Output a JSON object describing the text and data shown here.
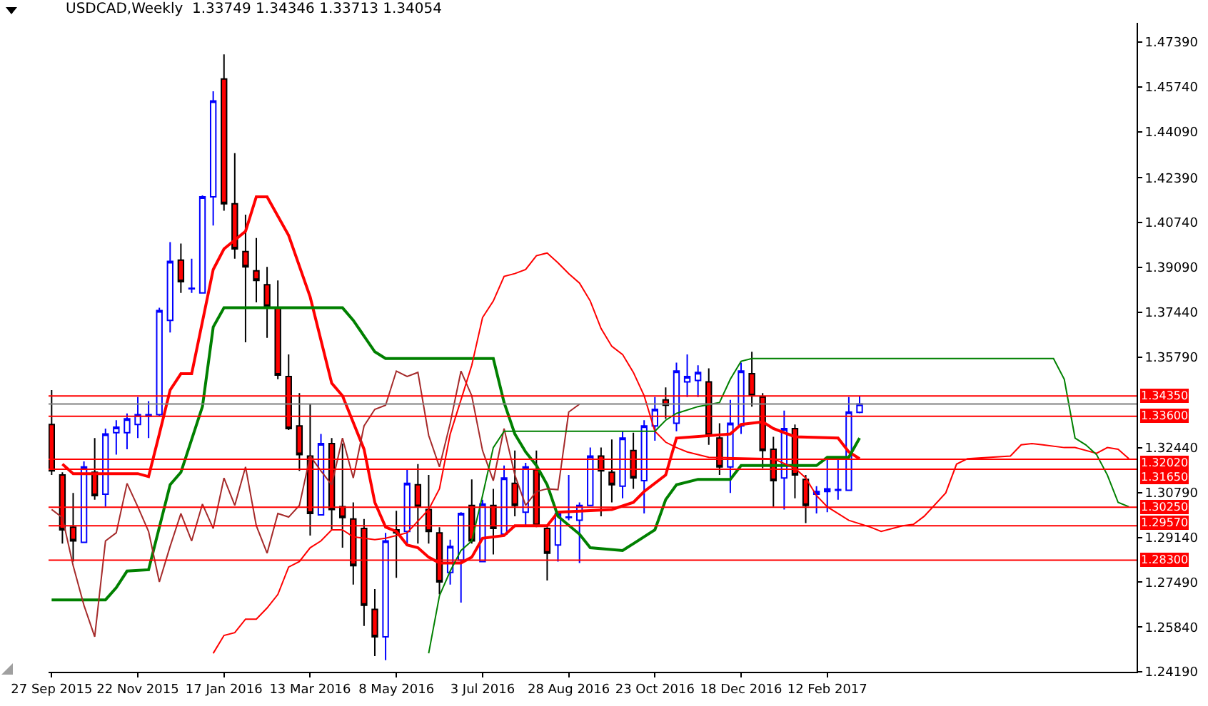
{
  "chart_data": {
    "type": "candlestick",
    "title": "USDCAD,Weekly  1.33749 1.34346 1.33713 1.34054",
    "x": [
      "2015-09-27",
      "2015-10-04",
      "2015-10-11",
      "2015-10-18",
      "2015-10-25",
      "2015-11-01",
      "2015-11-08",
      "2015-11-15",
      "2015-11-22",
      "2015-11-29",
      "2015-12-06",
      "2015-12-13",
      "2015-12-20",
      "2015-12-27",
      "2016-01-03",
      "2016-01-10",
      "2016-01-17",
      "2016-01-24",
      "2016-01-31",
      "2016-02-07",
      "2016-02-14",
      "2016-02-21",
      "2016-02-28",
      "2016-03-06",
      "2016-03-13",
      "2016-03-20",
      "2016-03-27",
      "2016-04-03",
      "2016-04-10",
      "2016-04-17",
      "2016-04-24",
      "2016-05-01",
      "2016-05-08",
      "2016-05-15",
      "2016-05-22",
      "2016-05-29",
      "2016-06-05",
      "2016-06-12",
      "2016-06-19",
      "2016-06-26",
      "2016-07-03",
      "2016-07-10",
      "2016-07-17",
      "2016-07-24",
      "2016-07-31",
      "2016-08-07",
      "2016-08-14",
      "2016-08-21",
      "2016-08-28",
      "2016-09-04",
      "2016-09-11",
      "2016-09-18",
      "2016-09-25",
      "2016-10-02",
      "2016-10-09",
      "2016-10-16",
      "2016-10-23",
      "2016-10-30",
      "2016-11-06",
      "2016-11-13",
      "2016-11-20",
      "2016-11-27",
      "2016-12-04",
      "2016-12-11",
      "2016-12-18",
      "2016-12-25",
      "2017-01-01",
      "2017-01-08",
      "2017-01-15",
      "2017-01-22",
      "2017-01-29",
      "2017-02-05",
      "2017-02-12",
      "2017-02-19",
      "2017-02-26",
      "2017-03-05"
    ],
    "ohlc": [
      [
        1.333,
        1.3457,
        1.3144,
        1.3159
      ],
      [
        1.3144,
        1.3154,
        1.2891,
        1.2942
      ],
      [
        1.2952,
        1.3078,
        1.2825,
        1.2901
      ],
      [
        1.2896,
        1.3194,
        1.2896,
        1.3174
      ],
      [
        1.3154,
        1.328,
        1.3053,
        1.3068
      ],
      [
        1.3073,
        1.3315,
        1.3027,
        1.3295
      ],
      [
        1.33,
        1.3346,
        1.3219,
        1.332
      ],
      [
        1.33,
        1.3371,
        1.3239,
        1.3351
      ],
      [
        1.333,
        1.3431,
        1.328,
        1.3366
      ],
      [
        1.3361,
        1.3416,
        1.328,
        1.3366
      ],
      [
        1.3366,
        1.376,
        1.3361,
        1.375
      ],
      [
        1.3714,
        1.4002,
        1.3669,
        1.3931
      ],
      [
        1.3936,
        1.3997,
        1.3815,
        1.3856
      ],
      [
        1.383,
        1.3941,
        1.3815,
        1.3832
      ],
      [
        1.3815,
        1.4174,
        1.3815,
        1.4169
      ],
      [
        1.4169,
        1.4558,
        1.4063,
        1.4522
      ],
      [
        1.4603,
        1.4694,
        1.4118,
        1.4143
      ],
      [
        1.4143,
        1.433,
        1.3941,
        1.3977
      ],
      [
        1.3967,
        1.4103,
        1.3633,
        1.3911
      ],
      [
        1.3896,
        1.4017,
        1.378,
        1.3861
      ],
      [
        1.3845,
        1.3911,
        1.3649,
        1.3765
      ],
      [
        1.376,
        1.3861,
        1.3497,
        1.3512
      ],
      [
        1.3507,
        1.3588,
        1.331,
        1.3315
      ],
      [
        1.3325,
        1.3446,
        1.3159,
        1.3219
      ],
      [
        1.3214,
        1.3406,
        1.2921,
        1.3002
      ],
      [
        1.2997,
        1.3295,
        1.2997,
        1.326
      ],
      [
        1.326,
        1.328,
        1.2942,
        1.3017
      ],
      [
        1.3027,
        1.326,
        1.2876,
        1.2987
      ],
      [
        1.2982,
        1.3043,
        1.274,
        1.281
      ],
      [
        1.2947,
        1.2982,
        1.2588,
        1.2664
      ],
      [
        1.2649,
        1.2724,
        1.2477,
        1.2548
      ],
      [
        1.2548,
        1.2931,
        1.2462,
        1.2901
      ],
      [
        1.2942,
        1.3012,
        1.2765,
        1.2931
      ],
      [
        1.2936,
        1.3164,
        1.2891,
        1.3113
      ],
      [
        1.3108,
        1.3184,
        1.2891,
        1.3027
      ],
      [
        1.3017,
        1.3144,
        1.2891,
        1.2936
      ],
      [
        1.2931,
        1.2952,
        1.2704,
        1.275
      ],
      [
        1.2785,
        1.2906,
        1.274,
        1.2881
      ],
      [
        1.283,
        1.3007,
        1.2674,
        1.3002
      ],
      [
        1.3032,
        1.3128,
        1.2891,
        1.2901
      ],
      [
        1.2825,
        1.3053,
        1.2825,
        1.3037
      ],
      [
        1.3032,
        1.3093,
        1.2851,
        1.2947
      ],
      [
        1.2926,
        1.3179,
        1.2926,
        1.3133
      ],
      [
        1.3113,
        1.3234,
        1.2992,
        1.3032
      ],
      [
        1.3007,
        1.3189,
        1.2957,
        1.3174
      ],
      [
        1.3164,
        1.3234,
        1.2952,
        1.2957
      ],
      [
        1.2947,
        1.2952,
        1.2755,
        1.2856
      ],
      [
        1.2886,
        1.3007,
        1.2825,
        1.3002
      ],
      [
        1.2987,
        1.3144,
        1.2977,
        1.2989
      ],
      [
        1.2977,
        1.3043,
        1.282,
        1.3032
      ],
      [
        1.3032,
        1.3245,
        1.3032,
        1.3214
      ],
      [
        1.3214,
        1.3245,
        1.2992,
        1.3159
      ],
      [
        1.3154,
        1.3275,
        1.3043,
        1.3108
      ],
      [
        1.3103,
        1.3305,
        1.3058,
        1.328
      ],
      [
        1.3234,
        1.33,
        1.3093,
        1.3133
      ],
      [
        1.3123,
        1.3346,
        1.3002,
        1.3325
      ],
      [
        1.3325,
        1.3431,
        1.327,
        1.3386
      ],
      [
        1.3421,
        1.3467,
        1.3351,
        1.3401
      ],
      [
        1.3335,
        1.3558,
        1.3305,
        1.3527
      ],
      [
        1.3487,
        1.3588,
        1.3431,
        1.3507
      ],
      [
        1.3492,
        1.3548,
        1.3431,
        1.3522
      ],
      [
        1.3487,
        1.3537,
        1.3255,
        1.329
      ],
      [
        1.328,
        1.3335,
        1.3144,
        1.3174
      ],
      [
        1.3174,
        1.3421,
        1.3078,
        1.3335
      ],
      [
        1.3325,
        1.3558,
        1.3295,
        1.3527
      ],
      [
        1.3517,
        1.3598,
        1.3396,
        1.3436
      ],
      [
        1.3431,
        1.3446,
        1.3169,
        1.3234
      ],
      [
        1.3239,
        1.3285,
        1.3027,
        1.3123
      ],
      [
        1.3133,
        1.3381,
        1.3017,
        1.3315
      ],
      [
        1.3315,
        1.333,
        1.3058,
        1.3144
      ],
      [
        1.3128,
        1.3144,
        1.2967,
        1.3032
      ],
      [
        1.3073,
        1.3103,
        1.3002,
        1.3083
      ],
      [
        1.3083,
        1.3204,
        1.3007,
        1.3093
      ],
      [
        1.3088,
        1.3204,
        1.3053,
        1.309
      ],
      [
        1.3088,
        1.3431,
        1.3088,
        1.3376
      ],
      [
        1.33749,
        1.34346,
        1.33713,
        1.34054
      ]
    ],
    "series": [
      {
        "type": "line",
        "color": "#ff0000",
        "x": [
          "2015-10-04",
          "2015-10-11",
          "2015-11-22",
          "2015-11-29",
          "2015-12-06",
          "2015-12-13",
          "2015-12-20",
          "2015-12-27",
          "2016-01-10",
          "2016-01-17",
          "2016-01-31",
          "2016-02-07",
          "2016-02-14",
          "2016-02-28",
          "2016-03-13",
          "2016-03-27",
          "2016-04-03",
          "2016-04-17",
          "2016-04-24",
          "2016-05-01",
          "2016-05-08",
          "2016-05-15",
          "2016-05-22",
          "2016-05-29",
          "2016-06-05",
          "2016-06-19",
          "2016-06-26",
          "2016-07-03",
          "2016-07-17",
          "2016-07-24",
          "2016-08-14",
          "2016-08-21",
          "2016-09-25",
          "2016-10-09",
          "2016-10-16",
          "2016-10-30",
          "2016-11-06",
          "2016-12-11",
          "2016-12-18",
          "2017-01-01",
          "2017-01-08",
          "2017-01-22",
          "2017-02-19",
          "2017-02-26",
          "2017-03-05"
        ],
        "values": [
          1.3184,
          1.3149,
          1.3149,
          1.3138,
          1.3295,
          1.3457,
          1.3517,
          1.3517,
          1.3901,
          1.3977,
          1.4042,
          1.4169,
          1.4169,
          1.4027,
          1.38,
          1.3482,
          1.3436,
          1.3239,
          1.3043,
          1.2952,
          1.2936,
          1.2886,
          1.2876,
          1.2841,
          1.282,
          1.282,
          1.2841,
          1.2911,
          1.2921,
          1.2957,
          1.2957,
          1.3007,
          1.3017,
          1.3043,
          1.3083,
          1.3144,
          1.328,
          1.3295,
          1.333,
          1.334,
          1.3315,
          1.3285,
          1.328,
          1.3229,
          1.3204
        ]
      },
      {
        "type": "line",
        "color": "#008000",
        "x": [
          "2015-09-27",
          "2015-11-01",
          "2015-11-08",
          "2015-11-15",
          "2015-11-29",
          "2015-12-13",
          "2015-12-20",
          "2016-01-03",
          "2016-01-10",
          "2016-01-17",
          "2016-04-03",
          "2016-04-10",
          "2016-04-24",
          "2016-05-01",
          "2016-07-10",
          "2016-07-17",
          "2016-07-24",
          "2016-07-31",
          "2016-08-07",
          "2016-08-14",
          "2016-08-21",
          "2016-09-04",
          "2016-09-11",
          "2016-10-02",
          "2016-10-09",
          "2016-10-23",
          "2016-10-30",
          "2016-11-06",
          "2016-11-20",
          "2016-12-11",
          "2016-12-18",
          "2017-02-05",
          "2017-02-12",
          "2017-02-26",
          "2017-03-05"
        ],
        "values": [
          1.2684,
          1.2684,
          1.2729,
          1.279,
          1.2795,
          1.3108,
          1.3154,
          1.3396,
          1.3689,
          1.376,
          1.376,
          1.3714,
          1.3598,
          1.3573,
          1.3573,
          1.3411,
          1.3295,
          1.3229,
          1.3179,
          1.3108,
          1.2992,
          1.2926,
          1.2876,
          1.2866,
          1.2891,
          1.2942,
          1.3053,
          1.3108,
          1.3128,
          1.3128,
          1.3179,
          1.3179,
          1.3209,
          1.3209,
          1.328
        ]
      },
      {
        "type": "line",
        "color": "#a52a2a",
        "x": [
          "2015-09-27",
          "2015-10-04",
          "2015-10-11",
          "2015-10-18",
          "2015-10-25",
          "2015-11-01",
          "2015-11-08",
          "2015-11-15",
          "2015-11-22",
          "2015-11-29",
          "2015-12-06",
          "2015-12-13",
          "2015-12-20",
          "2015-12-27",
          "2016-01-03",
          "2016-01-10",
          "2016-01-17",
          "2016-01-24",
          "2016-01-31",
          "2016-02-07",
          "2016-02-14",
          "2016-02-21",
          "2016-02-28",
          "2016-03-06",
          "2016-03-13",
          "2016-03-20",
          "2016-03-27",
          "2016-04-03",
          "2016-04-10",
          "2016-04-17",
          "2016-04-24",
          "2016-05-01",
          "2016-05-08",
          "2016-05-15",
          "2016-05-22",
          "2016-05-29",
          "2016-06-05",
          "2016-06-12",
          "2016-06-19",
          "2016-06-26",
          "2016-07-03",
          "2016-07-10",
          "2016-07-17",
          "2016-07-24",
          "2016-07-31",
          "2016-08-07",
          "2016-08-14",
          "2016-08-21",
          "2016-08-28",
          "2016-09-04"
        ],
        "values": [
          1.3017,
          1.2987,
          1.281,
          1.2664,
          1.2548,
          1.2901,
          1.2931,
          1.3113,
          1.3027,
          1.2936,
          1.275,
          1.2881,
          1.3002,
          1.2901,
          1.3037,
          1.2947,
          1.3133,
          1.3032,
          1.3174,
          1.2957,
          1.2856,
          1.3002,
          1.2989,
          1.3032,
          1.3214,
          1.3159,
          1.3108,
          1.328,
          1.3133,
          1.3325,
          1.3386,
          1.3401,
          1.3527,
          1.3507,
          1.3522,
          1.329,
          1.3174,
          1.3335,
          1.3527,
          1.3436,
          1.3234,
          1.3123,
          1.3315,
          1.3144,
          1.3032,
          1.3083,
          1.3093,
          1.309,
          1.3376,
          1.3405
        ]
      },
      {
        "type": "line",
        "color": "#ff0000",
        "x": [
          "2016-01-10",
          "2016-01-17",
          "2016-01-24",
          "2016-01-31",
          "2016-02-07",
          "2016-02-14",
          "2016-02-21",
          "2016-02-28",
          "2016-03-06",
          "2016-03-13",
          "2016-03-20",
          "2016-03-27",
          "2016-04-03",
          "2016-04-10",
          "2016-04-24",
          "2016-05-01",
          "2016-05-15",
          "2016-05-29",
          "2016-06-05",
          "2016-06-12",
          "2016-06-19",
          "2016-06-26",
          "2016-07-03",
          "2016-07-10",
          "2016-07-17",
          "2016-07-24",
          "2016-07-31",
          "2016-08-07",
          "2016-08-14",
          "2016-08-21",
          "2016-08-28",
          "2016-09-04",
          "2016-09-11",
          "2016-09-18",
          "2016-09-25",
          "2016-10-02",
          "2016-10-09",
          "2016-10-16",
          "2016-10-23",
          "2016-10-30",
          "2016-11-06",
          "2016-11-13",
          "2016-11-27",
          "2017-01-08",
          "2017-01-22",
          "2017-01-29",
          "2017-02-05",
          "2017-02-12",
          "2017-02-26",
          "2017-03-12",
          "2017-03-19",
          "2017-04-02",
          "2017-04-09",
          "2017-04-16",
          "2017-04-30",
          "2017-05-07",
          "2017-05-14",
          "2017-06-11",
          "2017-06-18",
          "2017-06-25",
          "2017-07-02",
          "2017-07-16",
          "2017-07-23",
          "2017-08-06",
          "2017-08-13",
          "2017-08-20",
          "2017-08-27"
        ],
        "values": [
          1.2487,
          1.2553,
          1.2563,
          1.2613,
          1.2613,
          1.2654,
          1.2704,
          1.2805,
          1.2825,
          1.2876,
          1.2901,
          1.2942,
          1.2942,
          1.2916,
          1.2906,
          1.2911,
          1.2931,
          1.3017,
          1.3093,
          1.3295,
          1.3421,
          1.3548,
          1.3724,
          1.3785,
          1.3876,
          1.3886,
          1.3901,
          1.3952,
          1.3962,
          1.3926,
          1.3886,
          1.3851,
          1.3785,
          1.3684,
          1.3618,
          1.3588,
          1.3522,
          1.3436,
          1.3305,
          1.3265,
          1.3245,
          1.3229,
          1.3209,
          1.3204,
          1.3169,
          1.3133,
          1.3068,
          1.3027,
          1.2977,
          1.2952,
          1.2936,
          1.2957,
          1.2962,
          1.2992,
          1.3078,
          1.3184,
          1.3204,
          1.3214,
          1.3255,
          1.326,
          1.3255,
          1.3245,
          1.3245,
          1.3224,
          1.3245,
          1.3239,
          1.3204
        ]
      },
      {
        "type": "line",
        "color": "#008000",
        "x": [
          "2016-05-29",
          "2016-06-05",
          "2016-06-12",
          "2016-06-19",
          "2016-06-26",
          "2016-07-03",
          "2016-07-10",
          "2016-07-17",
          "2016-10-23",
          "2016-10-30",
          "2016-11-06",
          "2016-11-20",
          "2016-12-04",
          "2016-12-11",
          "2016-12-18",
          "2016-12-25",
          "2017-07-09",
          "2017-07-16",
          "2017-07-23",
          "2017-07-30",
          "2017-08-06",
          "2017-08-13",
          "2017-08-20",
          "2017-08-27"
        ],
        "values": [
          1.2487,
          1.2699,
          1.279,
          1.2866,
          1.2901,
          1.3068,
          1.3245,
          1.3305,
          1.3305,
          1.3346,
          1.3371,
          1.3396,
          1.3411,
          1.3497,
          1.3563,
          1.3573,
          1.3573,
          1.3497,
          1.328,
          1.3255,
          1.3219,
          1.3144,
          1.3043,
          1.3027
        ]
      }
    ],
    "xlim": [
      "2015-09-25",
      "2017-09-01"
    ],
    "xticks": [
      {
        "value": "2015-09-27",
        "label": "27 Sep 2015"
      },
      {
        "value": "2015-11-22",
        "label": "22 Nov 2015"
      },
      {
        "value": "2016-01-17",
        "label": "17 Jan 2016"
      },
      {
        "value": "2016-03-13",
        "label": "13 Mar 2016"
      },
      {
        "value": "2016-05-08",
        "label": "8 May 2016"
      },
      {
        "value": "2016-07-03",
        "label": "3 Jul 2016"
      },
      {
        "value": "2016-08-28",
        "label": "28 Aug 2016"
      },
      {
        "value": "2016-10-23",
        "label": "23 Oct 2016"
      },
      {
        "value": "2016-12-18",
        "label": "18 Dec 2016"
      },
      {
        "value": "2017-02-12",
        "label": "12 Feb 2017"
      }
    ],
    "ylim": [
      1.2419,
      1.481
    ],
    "yticks": [
      {
        "value": 1.4739,
        "label": "1.47390"
      },
      {
        "value": 1.4574,
        "label": "1.45740"
      },
      {
        "value": 1.4409,
        "label": "1.44090"
      },
      {
        "value": 1.4239,
        "label": "1.42390"
      },
      {
        "value": 1.4074,
        "label": "1.40740"
      },
      {
        "value": 1.3909,
        "label": "1.39090"
      },
      {
        "value": 1.3744,
        "label": "1.37440"
      },
      {
        "value": 1.3579,
        "label": "1.35790"
      },
      {
        "value": 1.3244,
        "label": "1.32440"
      },
      {
        "value": 1.3079,
        "label": "1.30790"
      },
      {
        "value": 1.2914,
        "label": "1.29140"
      },
      {
        "value": 1.2749,
        "label": "1.27490"
      },
      {
        "value": 1.2584,
        "label": "1.25840"
      },
      {
        "value": 1.2419,
        "label": "1.24190"
      }
    ],
    "ref_lines": [
      {
        "axis": "y",
        "value": 1.3435,
        "label": "1.34350",
        "color": "#ff0000"
      },
      {
        "axis": "y",
        "value": 1.34054,
        "color": "#808080"
      },
      {
        "axis": "y",
        "value": 1.336,
        "label": "1.33600",
        "color": "#ff0000"
      },
      {
        "axis": "y",
        "value": 1.3202,
        "label": "1.32020",
        "color": "#ff0000"
      },
      {
        "axis": "y",
        "value": 1.3165,
        "label": "1.31650",
        "color": "#ff0000"
      },
      {
        "axis": "y",
        "value": 1.3025,
        "label": "1.30250",
        "color": "#ff0000"
      },
      {
        "axis": "y",
        "value": 1.2957,
        "label": "1.29570",
        "color": "#ff0000"
      },
      {
        "axis": "y",
        "value": 1.283,
        "label": "1.28300",
        "color": "#ff0000"
      }
    ]
  }
}
